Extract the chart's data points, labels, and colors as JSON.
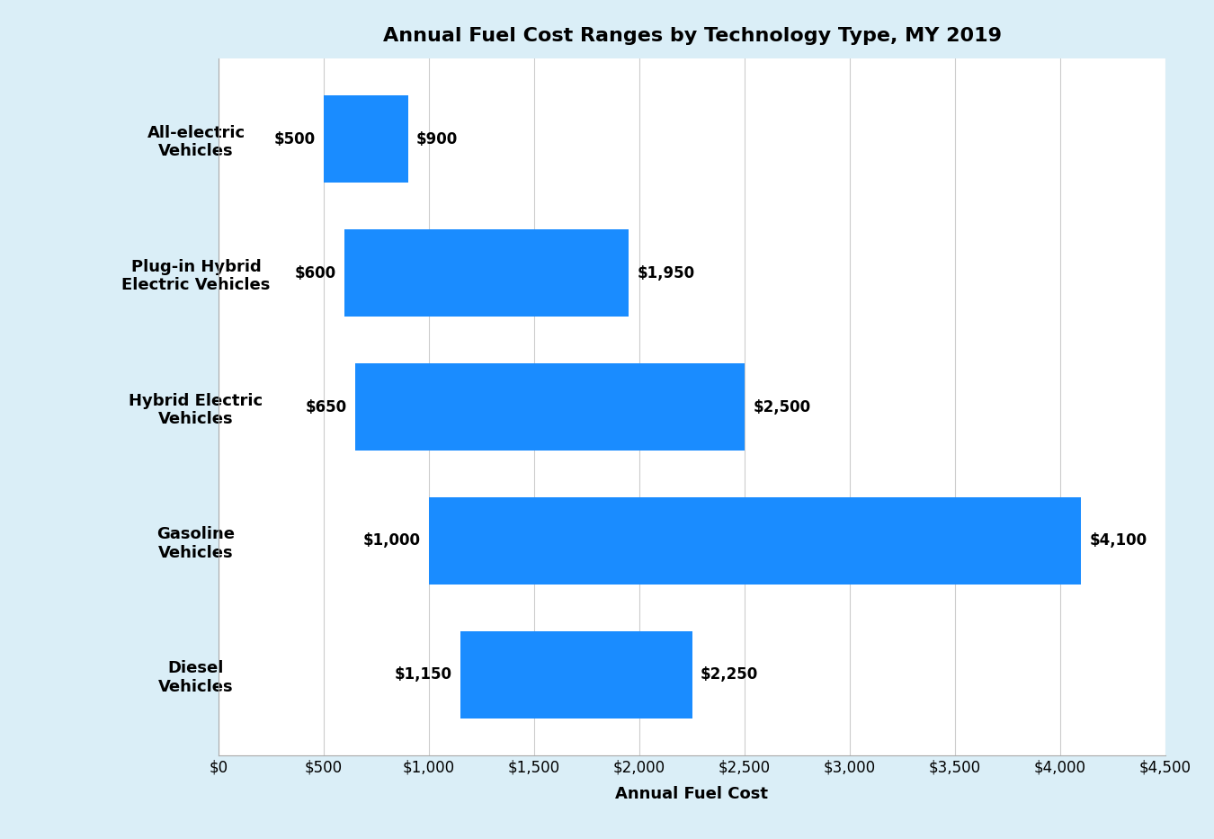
{
  "title": "Annual Fuel Cost Ranges by Technology Type, MY 2019",
  "xlabel": "Annual Fuel Cost",
  "categories": [
    "Diesel\nVehicles",
    "Gasoline\nVehicles",
    "Hybrid Electric\nVehicles",
    "Plug-in Hybrid\nElectric Vehicles",
    "All-electric\nVehicles"
  ],
  "ranges": [
    [
      1150,
      2250
    ],
    [
      1000,
      4100
    ],
    [
      650,
      2500
    ],
    [
      600,
      1950
    ],
    [
      500,
      900
    ]
  ],
  "bar_color": "#1a8cff",
  "background_outer": "#daeef7",
  "background_inner": "#ffffff",
  "xlim": [
    0,
    4500
  ],
  "xticks": [
    0,
    500,
    1000,
    1500,
    2000,
    2500,
    3000,
    3500,
    4000,
    4500
  ],
  "xticklabels": [
    "$0",
    "$500",
    "$1,000",
    "$1,500",
    "$2,000",
    "$2,500",
    "$3,000",
    "$3,500",
    "$4,000",
    "$4,500"
  ],
  "title_fontsize": 16,
  "axis_label_fontsize": 13,
  "tick_fontsize": 12,
  "annotation_fontsize": 12
}
